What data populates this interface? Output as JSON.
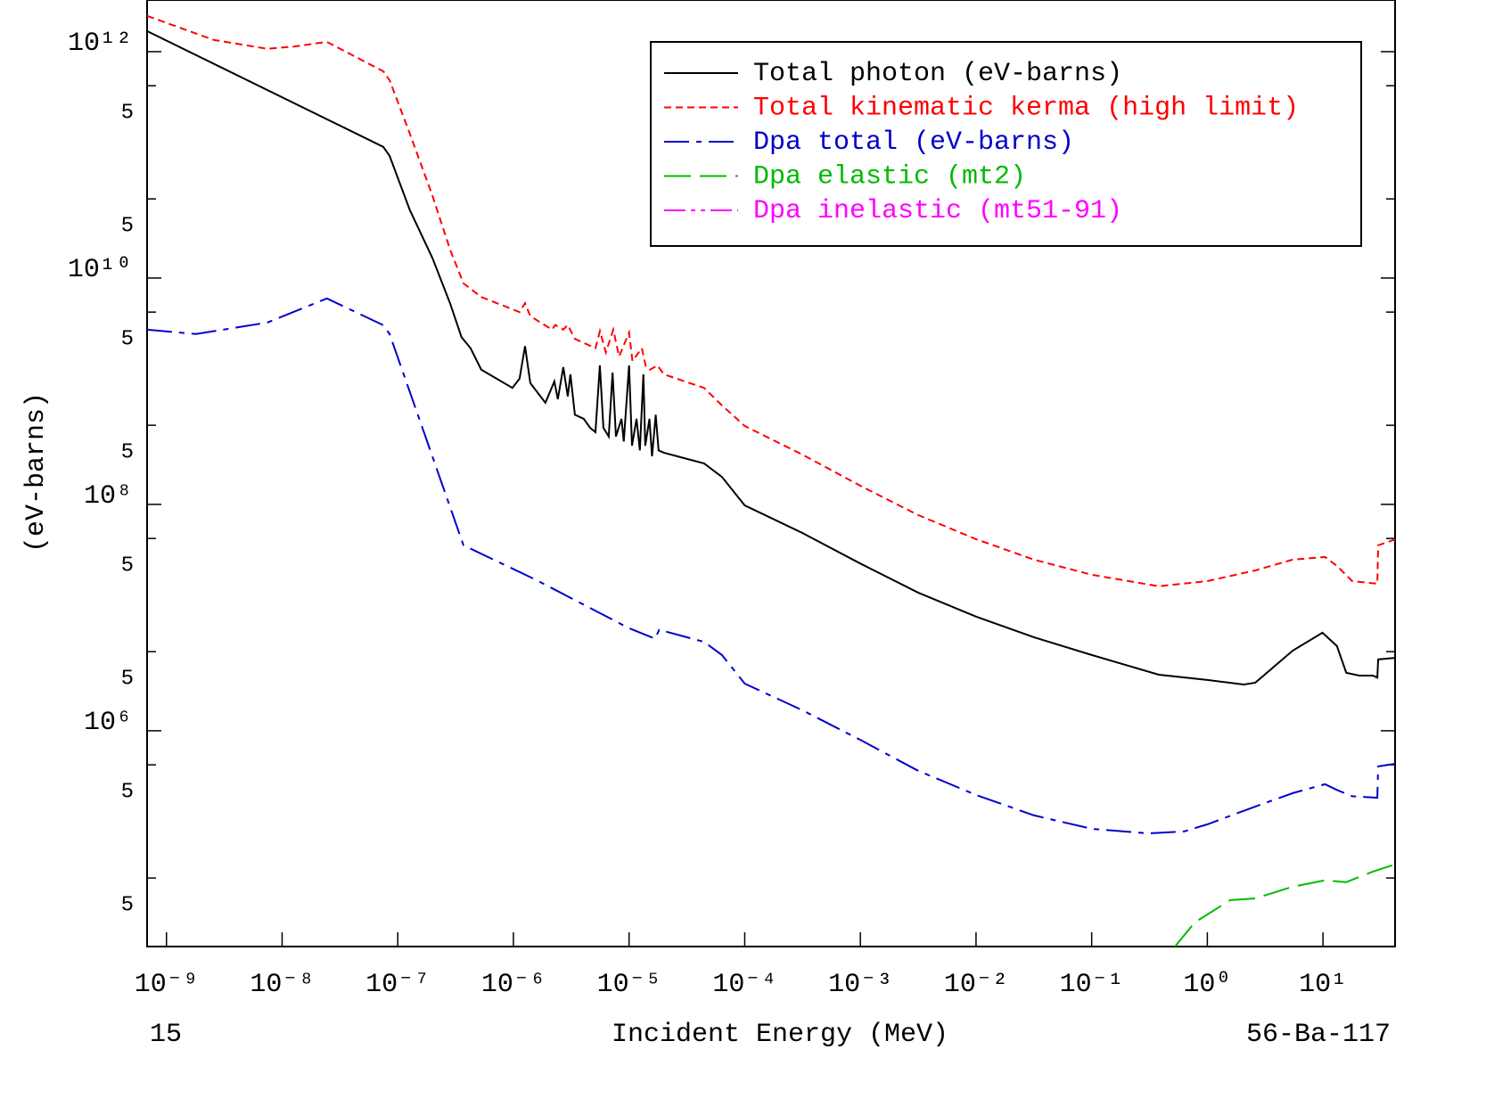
{
  "chart_data": {
    "type": "line",
    "x_label": "Incident Energy (MeV)",
    "y_label": "(eV-barns)",
    "footer_left": "15",
    "footer_right": "56-Ba-117",
    "xscale": "log",
    "yscale": "log",
    "xlim": [
      6.8e-10,
      42
    ],
    "ylim": [
      12400,
      2860000000000.0
    ],
    "xticks": [
      {
        "value": 1e-09,
        "label": "10⁻⁹"
      },
      {
        "value": 1e-08,
        "label": "10⁻⁸"
      },
      {
        "value": 1e-07,
        "label": "10⁻⁷"
      },
      {
        "value": 1e-06,
        "label": "10⁻⁶"
      },
      {
        "value": 1e-05,
        "label": "10⁻⁵"
      },
      {
        "value": 0.0001,
        "label": "10⁻⁴"
      },
      {
        "value": 0.001,
        "label": "10⁻³"
      },
      {
        "value": 0.01,
        "label": "10⁻²"
      },
      {
        "value": 0.1,
        "label": "10⁻¹"
      },
      {
        "value": 1,
        "label": "10⁰"
      },
      {
        "value": 10,
        "label": "10¹"
      }
    ],
    "yticks": [
      {
        "value": 1000000000000.0,
        "label": "10¹²"
      },
      {
        "value": 500000000000.0,
        "label": "5"
      },
      {
        "value": 50000000000.0,
        "label": "5"
      },
      {
        "value": 10000000000.0,
        "label": "10¹⁰"
      },
      {
        "value": 5000000000.0,
        "label": "5"
      },
      {
        "value": 500000000.0,
        "label": "5"
      },
      {
        "value": 100000000.0,
        "label": "10⁸"
      },
      {
        "value": 50000000.0,
        "label": "5"
      },
      {
        "value": 5000000.0,
        "label": "5"
      },
      {
        "value": 1000000.0,
        "label": "10⁶"
      },
      {
        "value": 500000.0,
        "label": "5"
      },
      {
        "value": 50000.0,
        "label": "5"
      }
    ],
    "legend": "upper right",
    "series": [
      {
        "name": "Total photon (eV-barns)",
        "color": "#000000",
        "style": "solid",
        "x": [
          6.8e-10,
          7.5e-08,
          8.5e-08,
          1.27e-07,
          2e-07,
          2.83e-07,
          3.56e-07,
          4.26e-07,
          5.27e-07,
          9.8e-07,
          1.13e-06,
          1.26e-06,
          1.4e-06,
          1.89e-06,
          2.26e-06,
          2.42e-06,
          2.7e-06,
          2.95e-06,
          3.11e-06,
          3.4e-06,
          4.06e-06,
          4.6e-06,
          5.12e-06,
          5.59e-06,
          6e-06,
          6.67e-06,
          7.2e-06,
          7.7e-06,
          8.6e-06,
          9e-06,
          1e-05,
          1.06e-05,
          1.16e-05,
          1.24e-05,
          1.33e-05,
          1.38e-05,
          1.5e-05,
          1.58e-05,
          1.7e-05,
          1.8e-05,
          2e-05,
          4.45e-05,
          6.35e-05,
          0.0001,
          0.000314,
          0.001,
          0.00316,
          0.01,
          0.0316,
          0.1,
          0.38,
          1.0,
          2.06,
          2.6,
          5.47,
          9.9,
          13.2,
          15.9,
          20.7,
          27.0,
          29.5,
          30,
          42
        ],
        "values": [
          1520000000000.0,
          144000000000.0,
          120000000000.0,
          40000000000.0,
          14900000000.0,
          6000000000.0,
          3000000000.0,
          2400000000.0,
          1550000000.0,
          1070000000.0,
          1290000000.0,
          2500000000.0,
          1180000000.0,
          790000000.0,
          1220000000.0,
          850000000.0,
          1630000000.0,
          900000000.0,
          1410000000.0,
          620000000.0,
          570000000.0,
          475000000.0,
          435000000.0,
          1690000000.0,
          475000000.0,
          398000000.0,
          1460000000.0,
          398000000.0,
          570000000.0,
          360000000.0,
          1690000000.0,
          330000000.0,
          570000000.0,
          300000000.0,
          1410000000.0,
          330000000.0,
          570000000.0,
          266000000.0,
          620000000.0,
          300000000.0,
          286000000.0,
          230000000.0,
          175000000.0,
          98000000.0,
          56000000.0,
          30000000.0,
          16600000.0,
          10200000.0,
          6700000.0,
          4670000.0,
          3130000.0,
          2810000.0,
          2560000.0,
          2660000.0,
          5100000.0,
          7350000.0,
          5600000.0,
          3250000.0,
          3070000.0,
          3070000.0,
          2950000.0,
          4270000.0,
          4400000.0
        ]
      },
      {
        "name": "Total kinematic kerma (high limit)",
        "color": "#ff0000",
        "style": "dashed",
        "x": [
          6.8e-10,
          2.56e-09,
          7.43e-09,
          1.27e-08,
          2.44e-08,
          7.5e-08,
          8.5e-08,
          1.27e-07,
          2e-07,
          2.83e-07,
          3.7e-07,
          5.27e-07,
          1.13e-06,
          1.26e-06,
          1.4e-06,
          2.16e-06,
          2.3e-06,
          2.7e-06,
          2.95e-06,
          3.4e-06,
          5.12e-06,
          5.6e-06,
          6.3e-06,
          7.3e-06,
          8.2e-06,
          1e-05,
          1.07e-05,
          1.29e-05,
          1.4e-05,
          1.52e-05,
          1.76e-05,
          2e-05,
          4.45e-05,
          6.35e-05,
          0.0001,
          0.000314,
          0.001,
          0.00316,
          0.01,
          0.0316,
          0.1,
          0.38,
          1.0,
          2.6,
          5.47,
          10.4,
          13.2,
          17.9,
          29.5,
          30,
          42
        ],
        "values": [
          2070000000000.0,
          1270000000000.0,
          1060000000000.0,
          1110000000000.0,
          1220000000000.0,
          670000000000.0,
          560000000000.0,
          189000000000.0,
          53000000000.0,
          17900000000.0,
          8970000000.0,
          6800000000.0,
          5000000000.0,
          6000000000.0,
          4600000000.0,
          3500000000.0,
          3850000000.0,
          3500000000.0,
          3850000000.0,
          2900000000.0,
          2400000000.0,
          3400000000.0,
          2200000000.0,
          3500000000.0,
          2030000000.0,
          3300000000.0,
          1850000000.0,
          2400000000.0,
          1630000000.0,
          1550000000.0,
          1690000000.0,
          1410000000.0,
          1070000000.0,
          750000000.0,
          493000000.0,
          276000000.0,
          146000000.0,
          80500000.0,
          49300000.0,
          32500000.0,
          23900000.0,
          18900000.0,
          21000000.0,
          26100000.0,
          32500000.0,
          34300000.0,
          28600000.0,
          21000000.0,
          19900000.0,
          43500000.0,
          49000000.0
        ]
      },
      {
        "name": "Dpa total (eV-barns)",
        "color": "#0000cc",
        "style": "dash-dot",
        "x": [
          6.8e-10,
          1.8e-09,
          7.43e-09,
          2.44e-08,
          7.5e-08,
          8.5e-08,
          3.7e-07,
          1.53e-06,
          1e-05,
          1.68e-05,
          1.82e-05,
          4.45e-05,
          6.35e-05,
          0.0001,
          0.000314,
          0.001,
          0.00316,
          0.01,
          0.0316,
          0.1,
          0.31,
          0.63,
          1.0,
          2.6,
          5.47,
          10.4,
          13.2,
          17.9,
          29.5,
          30,
          42
        ],
        "values": [
          3500000000.0,
          3200000000.0,
          4040000000.0,
          6600000000.0,
          3830000000.0,
          3200000000.0,
          43500000.0,
          21800000.0,
          8050000.0,
          6500000.0,
          7800000.0,
          6100000.0,
          4670000.0,
          2610000.0,
          1520000.0,
          830000.0,
          443000.0,
          271000.0,
          179000.0,
          136000.0,
          124000.0,
          129000.0,
          149000.0,
          214000.0,
          281000.0,
          337000.0,
          300000.0,
          264000.0,
          256000.0,
          484000.0,
          510000.0
        ]
      },
      {
        "name": "Dpa elastic (mt2)",
        "color": "#00bb00",
        "style": "long-dash",
        "x": [
          0.525,
          0.78,
          1.58,
          2.6,
          5.47,
          10.4,
          15.9,
          27,
          42
        ],
        "values": [
          12400,
          20300,
          31900,
          33000,
          41900,
          47700,
          46000,
          57000,
          66000
        ]
      },
      {
        "name": "Dpa inelastic (mt51-91)",
        "color": "#ff00ff",
        "style": "dash-dot-dot",
        "x": [],
        "values": []
      }
    ]
  }
}
